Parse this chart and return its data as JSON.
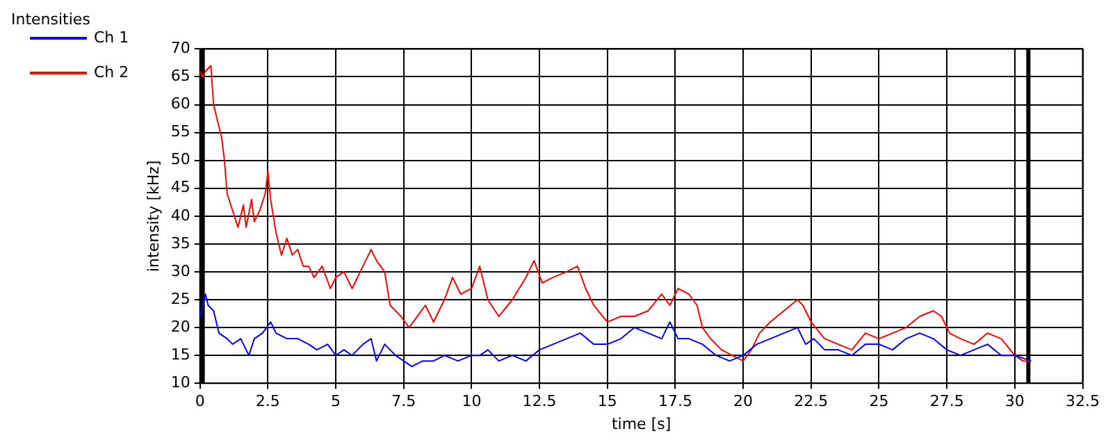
{
  "chart_data": {
    "type": "line",
    "title": "Intensities",
    "xlabel": "time [s]",
    "ylabel": "intensity [kHz]",
    "xlim": [
      0,
      32.5
    ],
    "xticks": [
      0,
      2.5,
      5,
      7.5,
      10,
      12.5,
      15,
      17.5,
      20,
      22.5,
      25,
      27.5,
      30,
      32.5
    ],
    "ylim": [
      10,
      70
    ],
    "yticks": [
      10,
      15,
      20,
      25,
      30,
      35,
      40,
      45,
      50,
      55,
      60,
      65,
      70
    ],
    "grid": true,
    "legend": "top left",
    "marker": "none",
    "line_style": "solid",
    "ref_lines": [
      {
        "axis": "x",
        "value": 0.1,
        "color": "#000000"
      },
      {
        "axis": "x",
        "value": 30.5,
        "color": "#000000"
      }
    ],
    "series": [
      {
        "name": "Ch 1",
        "color": "#0000ff",
        "x": [
          0,
          0.2,
          0.3,
          0.5,
          0.7,
          1,
          1.2,
          1.5,
          1.8,
          2,
          2.3,
          2.6,
          2.8,
          3.2,
          3.6,
          4,
          4.3,
          4.7,
          5,
          5.3,
          5.6,
          6,
          6.3,
          6.5,
          6.8,
          7.2,
          7.5,
          7.8,
          8.2,
          8.6,
          9,
          9.5,
          10,
          10.3,
          10.6,
          11,
          11.5,
          12,
          12.5,
          13,
          13.5,
          14,
          14.5,
          15,
          15.5,
          16,
          16.5,
          17,
          17.3,
          17.6,
          18,
          18.5,
          19,
          19.5,
          20,
          20.5,
          21,
          21.5,
          22,
          22.3,
          22.6,
          23,
          23.5,
          24,
          24.5,
          25,
          25.5,
          26,
          26.5,
          27,
          27.5,
          28,
          28.5,
          29,
          29.5,
          30,
          30.6
        ],
        "values": [
          22,
          26,
          24,
          23,
          19,
          18,
          17,
          18,
          15,
          18,
          19,
          21,
          19,
          18,
          18,
          17,
          16,
          17,
          15,
          16,
          15,
          17,
          18,
          14,
          17,
          15,
          14,
          13,
          14,
          14,
          15,
          14,
          15,
          15,
          16,
          14,
          15,
          14,
          16,
          17,
          18,
          19,
          17,
          17,
          18,
          20,
          19,
          18,
          21,
          18,
          18,
          17,
          15,
          14,
          15,
          17,
          18,
          19,
          20,
          17,
          18,
          16,
          16,
          15,
          17,
          17,
          16,
          18,
          19,
          18,
          16,
          15,
          16,
          17,
          15,
          15,
          14
        ]
      },
      {
        "name": "Ch 2",
        "color": "#ff0000",
        "x": [
          0,
          0.1,
          0.2,
          0.4,
          0.5,
          0.6,
          0.8,
          0.9,
          1,
          1.2,
          1.4,
          1.6,
          1.7,
          1.9,
          2,
          2.2,
          2.4,
          2.5,
          2.6,
          2.8,
          3,
          3.2,
          3.4,
          3.6,
          3.8,
          4,
          4.2,
          4.5,
          4.8,
          5,
          5.3,
          5.6,
          5.9,
          6.3,
          6.5,
          6.8,
          7,
          7.4,
          7.7,
          8,
          8.3,
          8.6,
          9,
          9.3,
          9.6,
          10,
          10.3,
          10.6,
          11,
          11.5,
          12,
          12.3,
          12.6,
          13,
          13.5,
          13.9,
          14.2,
          14.5,
          15,
          15.5,
          16,
          16.5,
          17,
          17.3,
          17.6,
          18,
          18.3,
          18.5,
          18.8,
          19.2,
          19.6,
          20,
          20.3,
          20.6,
          21,
          21.5,
          22,
          22.2,
          22.5,
          23,
          23.5,
          24,
          24.5,
          25,
          25.5,
          26,
          26.5,
          27,
          27.3,
          27.6,
          28,
          28.5,
          29,
          29.5,
          30,
          30.3,
          30.6
        ],
        "values": [
          66,
          65,
          66,
          67,
          60,
          58,
          54,
          50,
          44,
          41,
          38,
          42,
          38,
          43,
          39,
          41,
          44,
          48,
          43,
          37,
          33,
          36,
          33,
          34,
          31,
          31,
          29,
          31,
          27,
          29,
          30,
          27,
          30,
          34,
          32,
          30,
          24,
          22,
          20,
          22,
          24,
          21,
          25,
          29,
          26,
          27,
          31,
          25,
          22,
          25,
          29,
          32,
          28,
          29,
          30,
          31,
          27,
          24,
          21,
          22,
          22,
          23,
          26,
          24,
          27,
          26,
          24,
          20,
          18,
          16,
          15,
          14,
          16,
          19,
          21,
          23,
          25,
          24,
          21,
          18,
          17,
          16,
          19,
          18,
          19,
          20,
          22,
          23,
          22,
          19,
          18,
          17,
          19,
          18,
          15,
          14,
          14
        ]
      }
    ]
  }
}
